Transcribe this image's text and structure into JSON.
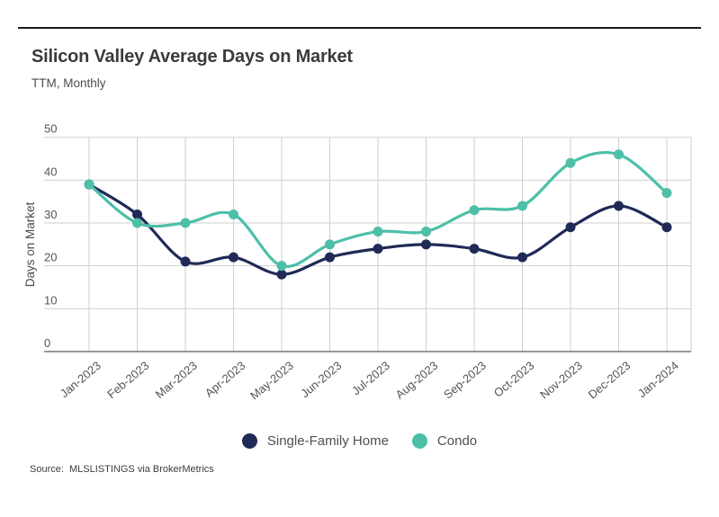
{
  "header": {
    "title": "Silicon Valley Average Days on Market",
    "subtitle": "TTM, Monthly"
  },
  "source": "Source:  MLSLISTINGS via BrokerMetrics",
  "colors": {
    "single_family": "#1f2a56",
    "condo": "#4dbfa8",
    "gridline": "#cfcfcf",
    "axis_line": "#777777",
    "tick_text": "#555555",
    "top_rule": "#1a1a1a"
  },
  "chart_data": {
    "type": "line",
    "title": "Silicon Valley Average Days on Market",
    "subtitle": "TTM, Monthly",
    "categories": [
      "Jan-2023",
      "Feb-2023",
      "Mar-2023",
      "Apr-2023",
      "May-2023",
      "Jun-2023",
      "Jul-2023",
      "Aug-2023",
      "Sep-2023",
      "Oct-2023",
      "Nov-2023",
      "Dec-2023",
      "Jan-2024"
    ],
    "series": [
      {
        "name": "Single-Family Home",
        "color": "#1f2a56",
        "values": [
          39,
          32,
          21,
          22,
          18,
          22,
          24,
          25,
          24,
          22,
          29,
          34,
          29
        ]
      },
      {
        "name": "Condo",
        "color": "#4dbfa8",
        "values": [
          39,
          30,
          30,
          32,
          20,
          25,
          28,
          28,
          33,
          34,
          44,
          46,
          37
        ]
      }
    ],
    "xlabel": "",
    "ylabel": "Days on Market",
    "ylim": [
      0,
      50
    ],
    "yticks": [
      0,
      10,
      20,
      30,
      40,
      50
    ],
    "grid": true,
    "legend_position": "bottom",
    "source": "Source:  MLSLISTINGS via BrokerMetrics"
  }
}
